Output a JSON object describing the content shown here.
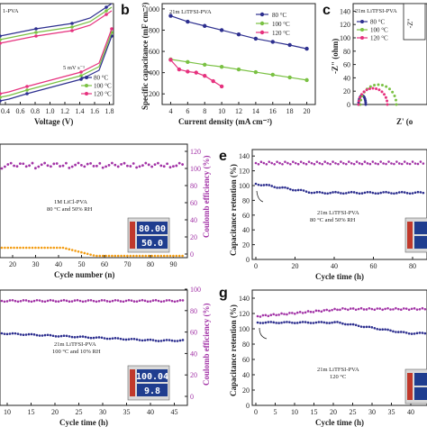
{
  "colors": {
    "blue": "#2d2f8f",
    "green": "#7ac143",
    "pink": "#e6317e",
    "orange": "#f39c12",
    "purple": "#a233a6",
    "navy": "#2d2f8f"
  },
  "chart_data": [
    {
      "id": "a",
      "type": "line",
      "panel_label": "",
      "sample_label": "1-PVA",
      "scan_rate": "5 mV s⁻¹",
      "xlabel": "Voltage (V)",
      "xticks": [
        "0.4",
        "0.6",
        "0.8",
        "1.0",
        "1.2",
        "1.4",
        "1.6",
        "1.8"
      ],
      "legend": [
        "80 °C",
        "100 °C",
        "120 °C"
      ]
    },
    {
      "id": "b",
      "type": "line",
      "panel_label": "b",
      "sample_label": "21m LiTFSI-PVA",
      "xlabel": "Current density (mA cm⁻²)",
      "ylabel": "Specific capacitance (mF cm⁻²)",
      "xticks": [
        "4",
        "6",
        "8",
        "10",
        "12",
        "14",
        "16",
        "18",
        "20"
      ],
      "yticks": [
        "200",
        "400",
        "600",
        "800",
        "1000"
      ],
      "xlim": [
        3,
        21
      ],
      "ylim": [
        100,
        1050
      ],
      "series": [
        {
          "name": "80 °C",
          "color": "#2d2f8f",
          "x": [
            4,
            6,
            8,
            10,
            12,
            14,
            16,
            18,
            20
          ],
          "values": [
            935,
            880,
            840,
            800,
            760,
            720,
            690,
            660,
            625
          ]
        },
        {
          "name": "100 °C",
          "color": "#7ac143",
          "x": [
            4,
            6,
            8,
            10,
            12,
            14,
            16,
            18,
            20
          ],
          "values": [
            525,
            500,
            475,
            455,
            430,
            405,
            380,
            355,
            330
          ]
        },
        {
          "name": "120 °C",
          "color": "#e6317e",
          "x": [
            4,
            5,
            6,
            7,
            8,
            9,
            10
          ],
          "values": [
            520,
            430,
            410,
            400,
            370,
            320,
            270
          ]
        }
      ]
    },
    {
      "id": "c",
      "type": "scatter",
      "panel_label": "c",
      "sample_label": "21m LiTFSI-PVA",
      "ylabel": "-Z\" (ohm)",
      "xlabel": "Z' (o",
      "yticks": [
        "0",
        "20",
        "40",
        "60",
        "80",
        "100",
        "120",
        "140"
      ],
      "inset_ylabel": "-Z\"",
      "legend": [
        "80 °C",
        "100 °C",
        "120 °C"
      ]
    },
    {
      "id": "d",
      "type": "line",
      "panel_label": "",
      "xlabel": "Cycle number (n)",
      "ylabel": "Coulomb efficiency (%)",
      "xticks": [
        "20",
        "30",
        "40",
        "50",
        "60",
        "70",
        "80",
        "90"
      ],
      "yticks": [
        "0",
        "20",
        "40",
        "60",
        "80",
        "100",
        "120"
      ],
      "annotation": [
        "1M LiCl-PVA",
        "80 °C and 50% RH"
      ],
      "display": [
        "80.00",
        "50.0"
      ]
    },
    {
      "id": "e",
      "type": "line",
      "panel_label": "e",
      "xlabel": "Cycle time (h)",
      "ylabel": "Capacitance retention (%)",
      "xticks": [
        "0",
        "20",
        "40",
        "60",
        "80"
      ],
      "yticks": [
        "0",
        "20",
        "40",
        "60",
        "80",
        "100",
        "120",
        "140"
      ],
      "annotation": [
        "21m LiTFSI-PVA",
        "80 °C and 50% RH"
      ]
    },
    {
      "id": "f",
      "type": "line",
      "panel_label": "",
      "xlabel": "Cycle time (h)",
      "ylabel": "Coulomb efficiency (%)",
      "xticks": [
        "10",
        "15",
        "20",
        "25",
        "30",
        "35",
        "40",
        "45"
      ],
      "yticks": [
        "0",
        "20",
        "40",
        "60",
        "80",
        "100"
      ],
      "annotation": [
        "21m LiTFSI-PVA",
        "100 °C and 10% RH"
      ],
      "display": [
        "100.04",
        "9.8"
      ]
    },
    {
      "id": "g",
      "type": "line",
      "panel_label": "g",
      "xlabel": "Cycle time (h)",
      "ylabel": "Capacitance retention (%)",
      "xticks": [
        "0",
        "5",
        "10",
        "15",
        "20",
        "25",
        "30",
        "35",
        "40"
      ],
      "yticks": [
        "0",
        "20",
        "40",
        "60",
        "80",
        "100",
        "120",
        "140"
      ],
      "annotation": [
        "21m LiTFSI-PVA",
        "120 °C"
      ]
    }
  ]
}
